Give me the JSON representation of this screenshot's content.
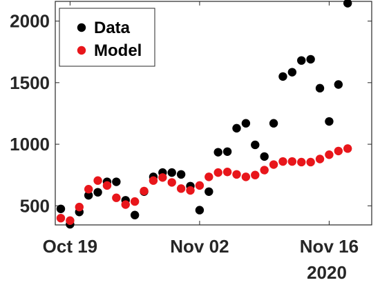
{
  "chart_data": {
    "type": "scatter",
    "x_axis": {
      "type": "date",
      "ticks": [
        {
          "date": "2020-10-19",
          "label": "Oct 19"
        },
        {
          "date": "2020-11-02",
          "label": "Nov 02"
        },
        {
          "date": "2020-11-16",
          "label": "Nov 16"
        }
      ],
      "secondary_label": "2020",
      "range": [
        "2020-10-18",
        "2020-11-20"
      ]
    },
    "y_axis": {
      "ticks": [
        500,
        1000,
        1500,
        2000
      ],
      "range": [
        345,
        2160
      ]
    },
    "legend": {
      "position": "top-left"
    },
    "grid": false,
    "series": [
      {
        "name": "Data",
        "color": "#000000",
        "points": [
          {
            "x": "2020-10-18",
            "y": 475
          },
          {
            "x": "2020-10-19",
            "y": 350
          },
          {
            "x": "2020-10-20",
            "y": 450
          },
          {
            "x": "2020-10-21",
            "y": 585
          },
          {
            "x": "2020-10-22",
            "y": 610
          },
          {
            "x": "2020-10-23",
            "y": 695
          },
          {
            "x": "2020-10-24",
            "y": 695
          },
          {
            "x": "2020-10-25",
            "y": 545
          },
          {
            "x": "2020-10-26",
            "y": 425
          },
          {
            "x": "2020-10-27",
            "y": 615
          },
          {
            "x": "2020-10-28",
            "y": 735
          },
          {
            "x": "2020-10-29",
            "y": 770
          },
          {
            "x": "2020-10-30",
            "y": 770
          },
          {
            "x": "2020-10-31",
            "y": 755
          },
          {
            "x": "2020-11-01",
            "y": 660
          },
          {
            "x": "2020-11-02",
            "y": 465
          },
          {
            "x": "2020-11-03",
            "y": 615
          },
          {
            "x": "2020-11-04",
            "y": 935
          },
          {
            "x": "2020-11-05",
            "y": 940
          },
          {
            "x": "2020-11-06",
            "y": 1130
          },
          {
            "x": "2020-11-07",
            "y": 1170
          },
          {
            "x": "2020-11-08",
            "y": 995
          },
          {
            "x": "2020-11-09",
            "y": 900
          },
          {
            "x": "2020-11-10",
            "y": 1170
          },
          {
            "x": "2020-11-11",
            "y": 1550
          },
          {
            "x": "2020-11-12",
            "y": 1585
          },
          {
            "x": "2020-11-13",
            "y": 1680
          },
          {
            "x": "2020-11-14",
            "y": 1690
          },
          {
            "x": "2020-11-15",
            "y": 1455
          },
          {
            "x": "2020-11-16",
            "y": 1185
          },
          {
            "x": "2020-11-17",
            "y": 1485
          },
          {
            "x": "2020-11-18",
            "y": 2145
          }
        ]
      },
      {
        "name": "Model",
        "color": "#e8161b",
        "points": [
          {
            "x": "2020-10-18",
            "y": 400
          },
          {
            "x": "2020-10-19",
            "y": 380
          },
          {
            "x": "2020-10-20",
            "y": 490
          },
          {
            "x": "2020-10-21",
            "y": 635
          },
          {
            "x": "2020-10-22",
            "y": 705
          },
          {
            "x": "2020-10-23",
            "y": 665
          },
          {
            "x": "2020-10-24",
            "y": 565
          },
          {
            "x": "2020-10-25",
            "y": 510
          },
          {
            "x": "2020-10-26",
            "y": 535
          },
          {
            "x": "2020-10-27",
            "y": 620
          },
          {
            "x": "2020-10-28",
            "y": 705
          },
          {
            "x": "2020-10-29",
            "y": 730
          },
          {
            "x": "2020-10-30",
            "y": 690
          },
          {
            "x": "2020-10-31",
            "y": 640
          },
          {
            "x": "2020-11-01",
            "y": 625
          },
          {
            "x": "2020-11-02",
            "y": 665
          },
          {
            "x": "2020-11-03",
            "y": 735
          },
          {
            "x": "2020-11-04",
            "y": 770
          },
          {
            "x": "2020-11-05",
            "y": 775
          },
          {
            "x": "2020-11-06",
            "y": 755
          },
          {
            "x": "2020-11-07",
            "y": 735
          },
          {
            "x": "2020-11-08",
            "y": 750
          },
          {
            "x": "2020-11-09",
            "y": 790
          },
          {
            "x": "2020-11-10",
            "y": 835
          },
          {
            "x": "2020-11-11",
            "y": 860
          },
          {
            "x": "2020-11-12",
            "y": 860
          },
          {
            "x": "2020-11-13",
            "y": 855
          },
          {
            "x": "2020-11-14",
            "y": 855
          },
          {
            "x": "2020-11-15",
            "y": 880
          },
          {
            "x": "2020-11-16",
            "y": 915
          },
          {
            "x": "2020-11-17",
            "y": 945
          },
          {
            "x": "2020-11-18",
            "y": 965
          }
        ]
      }
    ]
  }
}
